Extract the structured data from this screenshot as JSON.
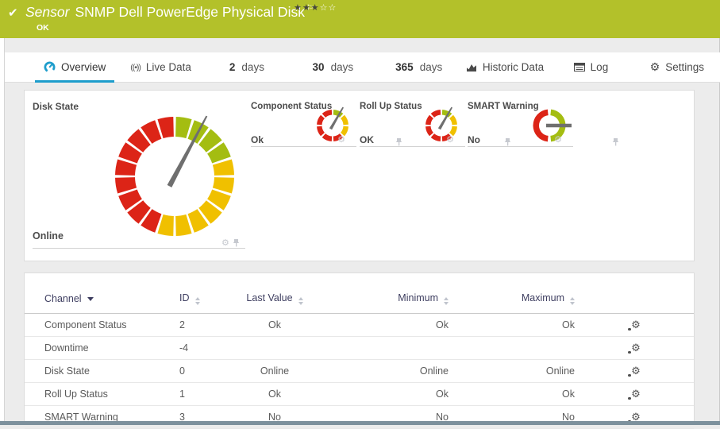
{
  "header": {
    "sensor_label": "Sensor",
    "title": "SNMP Dell PowerEdge Physical Disk",
    "status": "OK",
    "rating_filled": 3,
    "rating_total": 5
  },
  "tabs": {
    "overview": "Overview",
    "live_data": "Live Data",
    "d2_num": "2",
    "d2_label": "days",
    "d30_num": "30",
    "d30_label": "days",
    "d365_num": "365",
    "d365_label": "days",
    "historic": "Historic Data",
    "log": "Log",
    "settings": "Settings"
  },
  "gauges": {
    "disk_state": {
      "title": "Disk State",
      "value": "Online",
      "needle_deg": 28,
      "zones": [
        {
          "color": "#a4bd11",
          "from": 0,
          "to": 72,
          "count": 4
        },
        {
          "color": "#f0c000",
          "from": 72,
          "to": 198,
          "count": 7
        },
        {
          "color": "#dc2417",
          "from": 198,
          "to": 360,
          "count": 9
        }
      ]
    },
    "component_status": {
      "title": "Component Status",
      "value": "Ok",
      "needle_deg": 30,
      "zones": [
        {
          "color": "#a4bd11",
          "from": 0,
          "to": 45,
          "count": 1
        },
        {
          "color": "#f0c000",
          "from": 45,
          "to": 135,
          "count": 2
        },
        {
          "color": "#dc2417",
          "from": 135,
          "to": 360,
          "count": 5
        }
      ]
    },
    "rollup_status": {
      "title": "Roll Up Status",
      "value": "OK",
      "needle_deg": 30,
      "zones": [
        {
          "color": "#a4bd11",
          "from": 0,
          "to": 45,
          "count": 1
        },
        {
          "color": "#f0c000",
          "from": 45,
          "to": 135,
          "count": 2
        },
        {
          "color": "#dc2417",
          "from": 135,
          "to": 360,
          "count": 5
        }
      ]
    },
    "smart_warning": {
      "title": "SMART Warning",
      "value": "No",
      "needle_deg": 90,
      "zones": [
        {
          "color": "#a4bd11",
          "from": 6,
          "to": 174,
          "count": 1
        },
        {
          "color": "#dc2417",
          "from": 186,
          "to": 354,
          "count": 1
        }
      ]
    }
  },
  "table": {
    "headers": {
      "channel": "Channel",
      "id": "ID",
      "last": "Last Value",
      "min": "Minimum",
      "max": "Maximum"
    },
    "rows": [
      {
        "channel": "Component Status",
        "id": "2",
        "last": "Ok",
        "min": "Ok",
        "max": "Ok"
      },
      {
        "channel": "Downtime",
        "id": "-4",
        "last": "",
        "min": "",
        "max": ""
      },
      {
        "channel": "Disk State",
        "id": "0",
        "last": "Online",
        "min": "Online",
        "max": "Online"
      },
      {
        "channel": "Roll Up Status",
        "id": "1",
        "last": "Ok",
        "min": "Ok",
        "max": "Ok"
      },
      {
        "channel": "SMART Warning",
        "id": "3",
        "last": "No",
        "min": "No",
        "max": "No"
      }
    ]
  },
  "colors": {
    "header_bg": "#b3c12a",
    "accent": "#1e9dcc",
    "gauge_green": "#a4bd11",
    "gauge_yellow": "#f0c000",
    "gauge_red": "#dc2417",
    "bottom_bar": "#7d919d"
  }
}
